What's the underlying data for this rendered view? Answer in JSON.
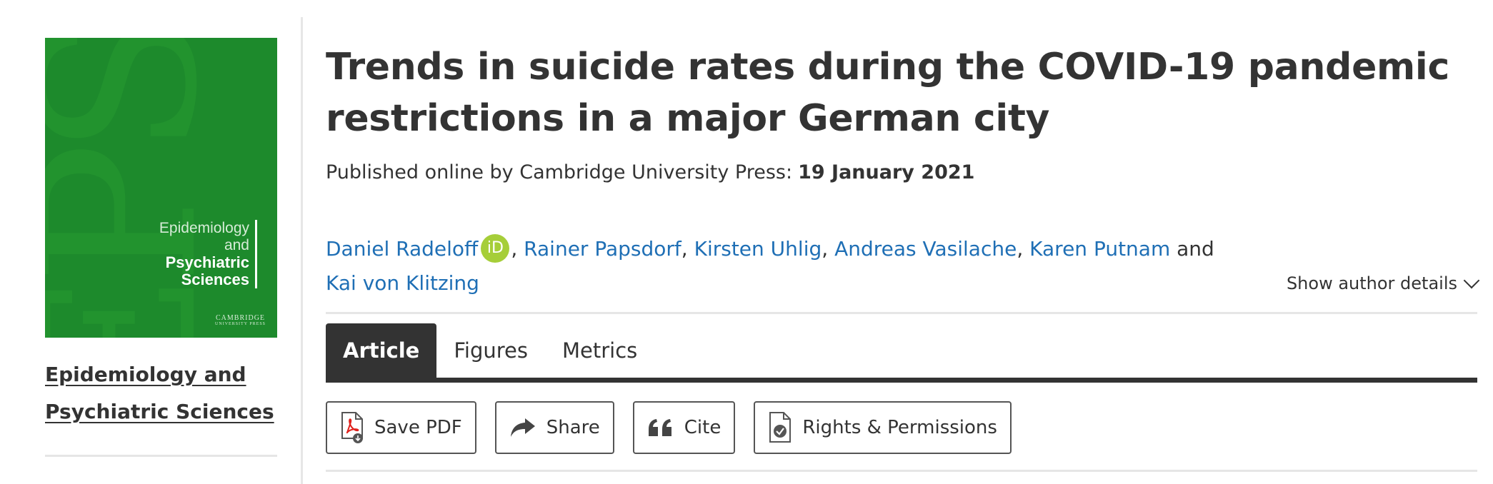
{
  "cover": {
    "title_line1": "Epidemiology",
    "title_line2": "and",
    "title_line3": "Psychiatric",
    "title_line4": "Sciences",
    "publisher": "CAMBRIDGE",
    "publisher_sub": "UNIVERSITY PRESS",
    "color": "#1d8a2c"
  },
  "journal": {
    "line1": "Epidemiology and",
    "line2": "Psychiatric Sciences"
  },
  "article": {
    "title_line1": "Trends in suicide rates during the COVID-19 pandemic",
    "title_line2": "restrictions in a major German city",
    "published_label": "Published online by Cambridge University Press:",
    "published_date": "19 January 2021"
  },
  "authors": {
    "list": [
      "Daniel Radeloff",
      "Rainer Papsdorf",
      "Kirsten Uhlig",
      "Andreas Vasilache",
      "Karen Putnam",
      "Kai von Klitzing"
    ],
    "conjunction": "and",
    "orcid_label": "iD",
    "show_details": "Show author details"
  },
  "tabs": [
    "Article",
    "Figures",
    "Metrics"
  ],
  "actions": {
    "save_pdf": "Save PDF",
    "share": "Share",
    "cite": "Cite",
    "rights": "Rights & Permissions"
  },
  "icons": {
    "pdf": "pdf-download-icon",
    "share": "share-arrow-icon",
    "cite": "quote-icon",
    "rights": "document-check-icon",
    "orcid": "orcid-icon"
  }
}
